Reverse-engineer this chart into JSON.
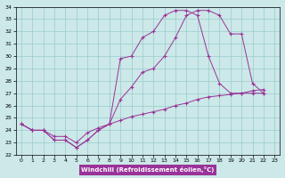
{
  "xlabel": "Windchill (Refroidissement éolien,°C)",
  "xlim": [
    -0.5,
    23.5
  ],
  "ylim": [
    22,
    34
  ],
  "yticks": [
    22,
    23,
    24,
    25,
    26,
    27,
    28,
    29,
    30,
    31,
    32,
    33,
    34
  ],
  "xticks": [
    0,
    1,
    2,
    3,
    4,
    5,
    6,
    7,
    8,
    9,
    10,
    11,
    12,
    13,
    14,
    15,
    16,
    17,
    18,
    19,
    20,
    21,
    22,
    23
  ],
  "bg_color": "#cce8e8",
  "grid_color": "#99cccc",
  "line_color": "#993399",
  "xlabel_bg": "#993399",
  "line1_x": [
    0,
    1,
    2,
    3,
    4,
    5,
    6,
    7,
    8,
    9,
    10,
    11,
    12,
    13,
    14,
    15,
    16,
    17,
    18,
    19,
    20,
    21,
    22
  ],
  "line1_y": [
    24.5,
    24.0,
    24.0,
    23.2,
    23.2,
    22.6,
    23.2,
    24.0,
    24.5,
    29.8,
    30.0,
    31.5,
    32.0,
    33.3,
    33.7,
    33.7,
    33.3,
    30.0,
    27.8,
    27.0,
    27.0,
    27.0,
    27.0
  ],
  "line2_x": [
    0,
    1,
    2,
    3,
    4,
    5,
    6,
    7,
    8,
    9,
    10,
    11,
    12,
    13,
    14,
    15,
    16,
    17,
    18,
    19,
    20,
    21,
    22
  ],
  "line2_y": [
    24.5,
    24.0,
    24.0,
    23.2,
    23.2,
    22.6,
    23.2,
    24.0,
    24.5,
    26.5,
    27.5,
    28.7,
    29.0,
    30.0,
    31.5,
    33.3,
    33.7,
    33.7,
    33.3,
    31.8,
    31.8,
    27.8,
    27.0
  ],
  "line3_x": [
    0,
    1,
    2,
    3,
    4,
    5,
    6,
    7,
    8,
    9,
    10,
    11,
    12,
    13,
    14,
    15,
    16,
    17,
    18,
    19,
    20,
    21,
    22
  ],
  "line3_y": [
    24.5,
    24.0,
    24.0,
    23.5,
    23.5,
    23.0,
    23.8,
    24.2,
    24.5,
    24.8,
    25.1,
    25.3,
    25.5,
    25.7,
    26.0,
    26.2,
    26.5,
    26.7,
    26.8,
    26.9,
    27.0,
    27.2,
    27.3
  ]
}
